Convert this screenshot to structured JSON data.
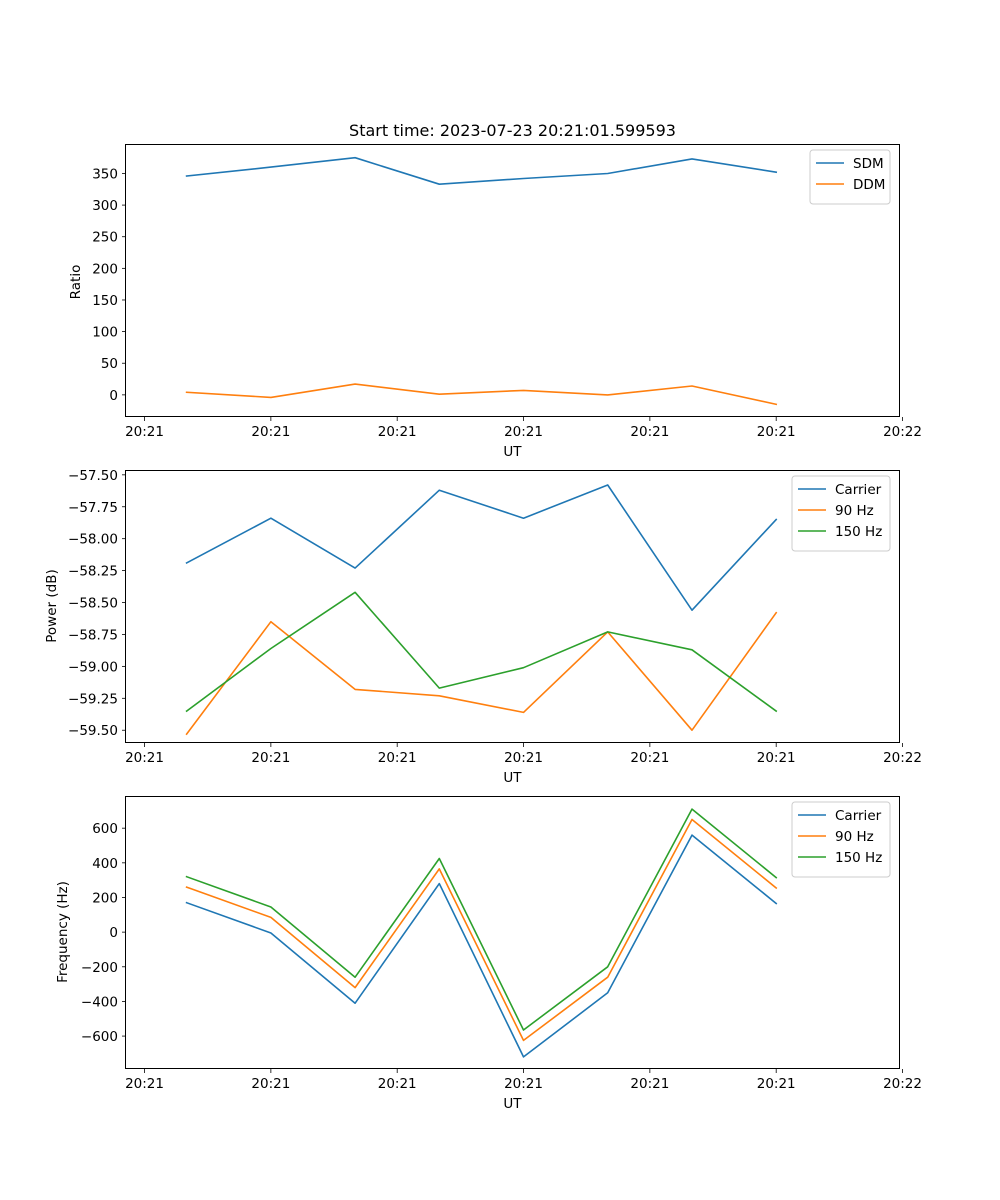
{
  "chart_data": [
    {
      "type": "line",
      "title": "Start time: 2023-07-23 20:21:01.599593",
      "xlabel": "UT",
      "ylabel": "Ratio",
      "xtick_labels": [
        "20:21",
        "20:21",
        "20:21",
        "20:21",
        "20:21",
        "20:21",
        "20:22"
      ],
      "x_index": [
        0,
        1,
        2,
        3,
        4,
        5,
        6,
        7
      ],
      "xlim": [
        -0.72,
        8.47
      ],
      "ylim": [
        -35,
        395
      ],
      "yticks": [
        0,
        50,
        100,
        150,
        200,
        250,
        300,
        350
      ],
      "ytick_labels": [
        "0",
        "50",
        "100",
        "150",
        "200",
        "250",
        "300",
        "350"
      ],
      "legend_position": "top-right",
      "series": [
        {
          "name": "SDM",
          "color": "#1f77b4",
          "values": [
            346,
            360,
            375,
            333,
            342,
            350,
            373,
            352
          ]
        },
        {
          "name": "DDM",
          "color": "#ff7f0e",
          "values": [
            4,
            -4,
            17,
            1,
            7,
            0,
            14,
            -15
          ]
        }
      ]
    },
    {
      "type": "line",
      "title": "",
      "xlabel": "UT",
      "ylabel": "Power (dB)",
      "xtick_labels": [
        "20:21",
        "20:21",
        "20:21",
        "20:21",
        "20:21",
        "20:21",
        "20:22"
      ],
      "x_index": [
        0,
        1,
        2,
        3,
        4,
        5,
        6,
        7
      ],
      "xlim": [
        -0.72,
        8.47
      ],
      "ylim": [
        -59.6,
        -57.47
      ],
      "yticks": [
        -59.5,
        -59.25,
        -59.0,
        -58.75,
        -58.5,
        -58.25,
        -58.0,
        -57.75,
        -57.5
      ],
      "ytick_labels": [
        "−59.50",
        "−59.25",
        "−59.00",
        "−58.75",
        "−58.50",
        "−58.25",
        "−58.00",
        "−57.75",
        "−57.50"
      ],
      "legend_position": "top-right",
      "series": [
        {
          "name": "Carrier",
          "color": "#1f77b4",
          "values": [
            -58.19,
            -57.84,
            -58.23,
            -57.62,
            -57.84,
            -57.58,
            -58.56,
            -57.85
          ]
        },
        {
          "name": "90 Hz",
          "color": "#ff7f0e",
          "values": [
            -59.53,
            -58.65,
            -59.18,
            -59.23,
            -59.36,
            -58.73,
            -59.5,
            -58.58
          ]
        },
        {
          "name": "150 Hz",
          "color": "#2ca02c",
          "values": [
            -59.35,
            -58.86,
            -58.42,
            -59.17,
            -59.01,
            -58.73,
            -58.87,
            -59.35
          ]
        }
      ]
    },
    {
      "type": "line",
      "title": "",
      "xlabel": "UT",
      "ylabel": "Frequency (Hz)",
      "xtick_labels": [
        "20:21",
        "20:21",
        "20:21",
        "20:21",
        "20:21",
        "20:21",
        "20:22"
      ],
      "x_index": [
        0,
        1,
        2,
        3,
        4,
        5,
        6,
        7
      ],
      "xlim": [
        -0.72,
        8.47
      ],
      "ylim": [
        -790,
        780
      ],
      "yticks": [
        -600,
        -400,
        -200,
        0,
        200,
        400,
        600
      ],
      "ytick_labels": [
        "−600",
        "−400",
        "−200",
        "0",
        "200",
        "400",
        "600"
      ],
      "legend_position": "top-right",
      "series": [
        {
          "name": "Carrier",
          "color": "#1f77b4",
          "values": [
            170,
            -5,
            -410,
            280,
            -720,
            -350,
            560,
            165
          ]
        },
        {
          "name": "90 Hz",
          "color": "#ff7f0e",
          "values": [
            260,
            85,
            -320,
            365,
            -625,
            -260,
            650,
            255
          ]
        },
        {
          "name": "150 Hz",
          "color": "#2ca02c",
          "values": [
            320,
            145,
            -260,
            425,
            -565,
            -200,
            710,
            315
          ]
        }
      ]
    }
  ]
}
